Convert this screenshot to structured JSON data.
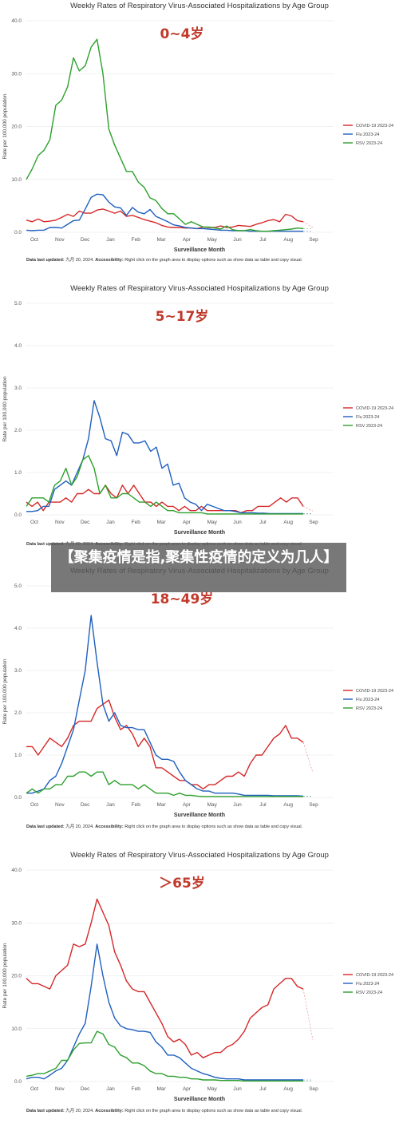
{
  "banner": "【聚集疫情是指,聚集性疫情的定义为几人】",
  "footer": {
    "updated_label": "Data last updated:",
    "updated_value": "九月 20, 2024.",
    "access_label": "Accessibility:",
    "access_text": "Right click on the graph area to display options such as show data as table and copy visual."
  },
  "chart_data": [
    {
      "type": "line",
      "title": "Weekly Rates of Respiratory Virus-Associated Hospitalizations by Age Group",
      "subtitle": "0~4岁",
      "xlabel": "Surveillance Month",
      "ylabel": "Rate per 100,000 population",
      "x_ticks": [
        "Oct",
        "Nov",
        "Dec",
        "Jan",
        "Feb",
        "Mar",
        "Apr",
        "May",
        "Jun",
        "Jul",
        "Aug",
        "Sep"
      ],
      "ylim": [
        0,
        40
      ],
      "y_ticks": [
        "0.0",
        "10.0",
        "20.0",
        "30.0",
        "40.0"
      ],
      "legend_position": "right",
      "series": [
        {
          "name": "COVID-19 2023-24",
          "color": "#d62728",
          "values": [
            2.3,
            2.0,
            2.5,
            2.0,
            2.1,
            2.3,
            2.8,
            3.4,
            3.0,
            4.0,
            3.6,
            3.6,
            4.2,
            4.4,
            4.0,
            3.6,
            4.0,
            3.0,
            3.2,
            2.8,
            2.4,
            2.1,
            1.8,
            1.3,
            1.0,
            0.9,
            0.9,
            0.8,
            0.8,
            0.7,
            1.0,
            0.9,
            0.9,
            1.2,
            0.9,
            1.0,
            1.3,
            1.2,
            1.1,
            1.5,
            1.8,
            2.2,
            2.4,
            2.0,
            3.4,
            3.1,
            2.2,
            2.0
          ]
        },
        {
          "name": "Flu 2023-24",
          "color": "#1f5fbf",
          "values": [
            0.4,
            0.3,
            0.4,
            0.4,
            0.9,
            0.9,
            0.8,
            1.5,
            2.2,
            2.3,
            4.4,
            6.6,
            7.2,
            7.1,
            5.7,
            4.8,
            4.6,
            3.2,
            4.7,
            3.8,
            3.5,
            4.3,
            3.0,
            2.5,
            2.0,
            1.4,
            1.2,
            0.9,
            0.8,
            0.7,
            0.7,
            0.6,
            0.5,
            0.4,
            0.4,
            0.3,
            0.3,
            0.3,
            0.2,
            0.2,
            0.2,
            0.2,
            0.2,
            0.2,
            0.2,
            0.2,
            0.2,
            0.2
          ]
        },
        {
          "name": "RSV 2023-24",
          "color": "#2ca02c",
          "values": [
            10.0,
            12.0,
            14.5,
            15.5,
            17.5,
            24.0,
            25.0,
            27.5,
            33.0,
            30.5,
            31.5,
            35.0,
            36.5,
            30.0,
            19.5,
            16.5,
            14.0,
            11.5,
            11.5,
            9.5,
            8.5,
            6.5,
            6.0,
            4.5,
            3.5,
            3.5,
            2.5,
            1.5,
            2.0,
            1.5,
            1.0,
            1.0,
            0.8,
            0.6,
            1.2,
            0.5,
            0.3,
            0.3,
            0.5,
            0.3,
            0.2,
            0.2,
            0.3,
            0.4,
            0.5,
            0.6,
            0.8,
            0.7
          ]
        }
      ]
    },
    {
      "type": "line",
      "title": "Weekly Rates of Respiratory Virus-Associated Hospitalizations by Age Group",
      "subtitle": "5~17岁",
      "xlabel": "Surveillance Month",
      "ylabel": "Rate per 100,000 population",
      "x_ticks": [
        "Oct",
        "Nov",
        "Dec",
        "Jan",
        "Feb",
        "Mar",
        "Apr",
        "May",
        "Jun",
        "Jul",
        "Aug",
        "Sep"
      ],
      "ylim": [
        0,
        5
      ],
      "y_ticks": [
        "0.0",
        "1.0",
        "2.0",
        "3.0",
        "4.0",
        "5.0"
      ],
      "legend_position": "right",
      "series": [
        {
          "name": "COVID-19 2023-24",
          "color": "#d62728",
          "values": [
            0.3,
            0.2,
            0.3,
            0.1,
            0.3,
            0.3,
            0.3,
            0.4,
            0.3,
            0.5,
            0.5,
            0.6,
            0.5,
            0.5,
            0.7,
            0.5,
            0.4,
            0.7,
            0.5,
            0.7,
            0.5,
            0.3,
            0.3,
            0.2,
            0.3,
            0.2,
            0.2,
            0.1,
            0.2,
            0.1,
            0.1,
            0.2,
            0.1,
            0.1,
            0.1,
            0.1,
            0.1,
            0.1,
            0.05,
            0.1,
            0.1,
            0.2,
            0.2,
            0.2,
            0.3,
            0.4,
            0.3,
            0.4,
            0.4,
            0.2
          ]
        },
        {
          "name": "Flu 2023-24",
          "color": "#1f5fbf",
          "values": [
            0.08,
            0.08,
            0.1,
            0.2,
            0.2,
            0.6,
            0.7,
            0.8,
            0.7,
            1.0,
            1.3,
            1.8,
            2.7,
            2.3,
            1.8,
            1.75,
            1.4,
            1.95,
            1.9,
            1.7,
            1.7,
            1.75,
            1.5,
            1.6,
            1.1,
            1.2,
            0.7,
            0.75,
            0.4,
            0.3,
            0.25,
            0.1,
            0.25,
            0.2,
            0.15,
            0.1,
            0.1,
            0.08,
            0.05,
            0.05,
            0.05,
            0.04,
            0.04,
            0.03,
            0.03,
            0.03,
            0.03,
            0.03,
            0.03,
            0.03
          ]
        },
        {
          "name": "RSV 2023-24",
          "color": "#2ca02c",
          "values": [
            0.2,
            0.4,
            0.4,
            0.4,
            0.3,
            0.7,
            0.8,
            1.1,
            0.7,
            0.9,
            1.3,
            1.4,
            1.1,
            0.5,
            0.7,
            0.4,
            0.4,
            0.5,
            0.5,
            0.4,
            0.3,
            0.3,
            0.2,
            0.3,
            0.2,
            0.1,
            0.1,
            0.05,
            0.05,
            0.05,
            0.05,
            0.05,
            0.02,
            0.02,
            0.02,
            0.02,
            0.02,
            0.02,
            0.02,
            0.02,
            0.02,
            0.02,
            0.02,
            0.02,
            0.02,
            0.02,
            0.02,
            0.02,
            0.02,
            0.02
          ]
        }
      ]
    },
    {
      "type": "line",
      "title": "Weekly Rates of Respiratory Virus-Associated Hospitalizations by Age Group",
      "subtitle": "18~49岁",
      "xlabel": "Surveillance Month",
      "ylabel": "Rate per 100,000 population",
      "x_ticks": [
        "Oct",
        "Nov",
        "Dec",
        "Jan",
        "Feb",
        "Mar",
        "Apr",
        "May",
        "Jun",
        "Jul",
        "Aug",
        "Sep"
      ],
      "ylim": [
        0,
        5
      ],
      "y_ticks": [
        "0.0",
        "1.0",
        "2.0",
        "3.0",
        "4.0",
        "5.0"
      ],
      "legend_position": "right",
      "series": [
        {
          "name": "COVID-19 2023-24",
          "color": "#d62728",
          "values": [
            1.2,
            1.2,
            1.0,
            1.2,
            1.4,
            1.3,
            1.2,
            1.4,
            1.7,
            1.8,
            1.8,
            1.8,
            2.1,
            2.2,
            2.3,
            1.9,
            1.6,
            1.7,
            1.5,
            1.2,
            1.4,
            1.2,
            0.7,
            0.7,
            0.6,
            0.5,
            0.4,
            0.4,
            0.3,
            0.3,
            0.2,
            0.3,
            0.3,
            0.4,
            0.5,
            0.5,
            0.6,
            0.5,
            0.8,
            1.0,
            1.0,
            1.2,
            1.4,
            1.5,
            1.7,
            1.4,
            1.4,
            1.3
          ]
        },
        {
          "name": "Flu 2023-24",
          "color": "#1f5fbf",
          "values": [
            0.1,
            0.1,
            0.15,
            0.2,
            0.4,
            0.5,
            0.8,
            1.2,
            1.6,
            2.3,
            3.0,
            4.3,
            3.2,
            2.2,
            1.8,
            2.0,
            1.7,
            1.65,
            1.65,
            1.6,
            1.6,
            1.3,
            1.0,
            0.9,
            0.9,
            0.85,
            0.6,
            0.4,
            0.3,
            0.2,
            0.15,
            0.15,
            0.1,
            0.1,
            0.1,
            0.1,
            0.08,
            0.05,
            0.05,
            0.05,
            0.05,
            0.05,
            0.04,
            0.04,
            0.04,
            0.04,
            0.04,
            0.03
          ]
        },
        {
          "name": "RSV 2023-24",
          "color": "#2ca02c",
          "values": [
            0.1,
            0.2,
            0.1,
            0.2,
            0.2,
            0.3,
            0.3,
            0.5,
            0.5,
            0.6,
            0.6,
            0.5,
            0.6,
            0.6,
            0.3,
            0.4,
            0.3,
            0.3,
            0.3,
            0.2,
            0.3,
            0.2,
            0.1,
            0.1,
            0.1,
            0.05,
            0.1,
            0.05,
            0.05,
            0.03,
            0.02,
            0.02,
            0.02,
            0.02,
            0.02,
            0.02,
            0.02,
            0.02,
            0.02,
            0.02,
            0.02,
            0.02,
            0.02,
            0.02,
            0.02,
            0.02,
            0.02,
            0.02
          ]
        }
      ]
    },
    {
      "type": "line",
      "title": "Weekly Rates of Respiratory Virus-Associated Hospitalizations by Age Group",
      "subtitle": "＞65岁",
      "xlabel": "Surveillance Month",
      "ylabel": "Rate per 100,000 population",
      "x_ticks": [
        "Oct",
        "Nov",
        "Dec",
        "Jan",
        "Feb",
        "Mar",
        "Apr",
        "May",
        "Jun",
        "Jul",
        "Aug",
        "Sep"
      ],
      "ylim": [
        0,
        40
      ],
      "y_ticks": [
        "0.0",
        "10.0",
        "20.0",
        "30.0",
        "40.0"
      ],
      "legend_position": "right",
      "series": [
        {
          "name": "COVID-19 2023-24",
          "color": "#d62728",
          "values": [
            19.5,
            18.5,
            18.5,
            18.0,
            17.5,
            20.0,
            21.0,
            22.0,
            26.0,
            25.5,
            26.0,
            30.0,
            34.5,
            32.0,
            29.5,
            24.5,
            22.0,
            19.0,
            17.5,
            17.0,
            17.0,
            15.0,
            13.0,
            11.0,
            8.5,
            7.5,
            8.0,
            7.0,
            5.0,
            5.5,
            4.5,
            5.0,
            5.5,
            5.5,
            6.5,
            7.0,
            8.0,
            9.5,
            12.0,
            13.0,
            14.0,
            14.5,
            17.5,
            18.5,
            19.5,
            19.5,
            18.0,
            17.5
          ]
        },
        {
          "name": "Flu 2023-24",
          "color": "#1f5fbf",
          "values": [
            0.5,
            0.8,
            0.8,
            0.5,
            1.2,
            2.0,
            2.5,
            4.0,
            6.5,
            9.0,
            11.0,
            18.0,
            26.0,
            20.0,
            15.0,
            12.0,
            10.5,
            10.0,
            9.8,
            9.5,
            9.5,
            9.3,
            7.5,
            6.5,
            5.0,
            5.0,
            4.5,
            3.5,
            2.5,
            2.0,
            1.5,
            1.2,
            0.8,
            0.6,
            0.5,
            0.5,
            0.5,
            0.3,
            0.3,
            0.3,
            0.3,
            0.3,
            0.3,
            0.3,
            0.3,
            0.3,
            0.3,
            0.3
          ]
        },
        {
          "name": "RSV 2023-24",
          "color": "#2ca02c",
          "values": [
            1.0,
            1.2,
            1.5,
            1.5,
            2.0,
            2.5,
            4.0,
            4.0,
            6.0,
            7.2,
            7.3,
            7.3,
            9.5,
            9.0,
            7.0,
            6.5,
            5.0,
            4.5,
            3.5,
            3.5,
            3.0,
            2.0,
            1.5,
            1.5,
            1.0,
            1.0,
            0.8,
            0.8,
            0.5,
            0.5,
            0.3,
            0.3,
            0.3,
            0.2,
            0.2,
            0.2,
            0.2,
            0.1,
            0.1,
            0.1,
            0.1,
            0.1,
            0.1,
            0.1,
            0.1,
            0.1,
            0.1,
            0.1
          ]
        }
      ]
    }
  ]
}
